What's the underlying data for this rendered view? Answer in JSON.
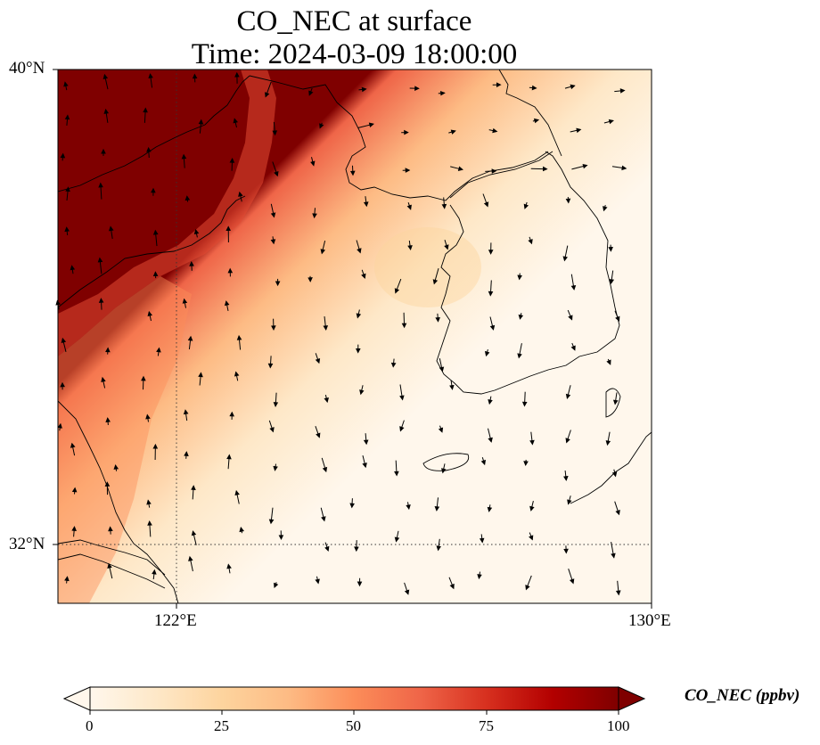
{
  "title": {
    "line1": "CO_NEC at surface",
    "line2": "Time: 2024-03-09 18:00:00"
  },
  "map": {
    "type": "gridded concentration field with wind vectors",
    "projection": "lat-lon",
    "lon_range": [
      120,
      130
    ],
    "lat_range": [
      31,
      40
    ],
    "gridlines": "dotted",
    "lat_ticks": [
      {
        "value": 40,
        "label": "40°N"
      },
      {
        "value": 32,
        "label": "32°N"
      }
    ],
    "lon_ticks": [
      {
        "value": 122,
        "label": "122°E"
      },
      {
        "value": 130,
        "label": "130°E"
      }
    ],
    "field_description": "high CO (>100 ppbv) over north-west corner (North China Plain / Bohai region), decreasing south-eastward; low background (<10 ppbv) over Korea and the East Sea"
  },
  "colorbar": {
    "label": "CO_NEC (ppbv)",
    "colormap": "OrRd",
    "range": [
      0,
      100
    ],
    "extend": "both",
    "ticks": [
      {
        "value": 0,
        "label": "0"
      },
      {
        "value": 25,
        "label": "25"
      },
      {
        "value": 50,
        "label": "50"
      },
      {
        "value": 75,
        "label": "75"
      },
      {
        "value": 100,
        "label": "100"
      }
    ],
    "colors": [
      "#fff7ec",
      "#fee8c8",
      "#fdd49e",
      "#fdbb84",
      "#fc8d59",
      "#ef6548",
      "#d7301f",
      "#b30000",
      "#7f0000"
    ]
  }
}
